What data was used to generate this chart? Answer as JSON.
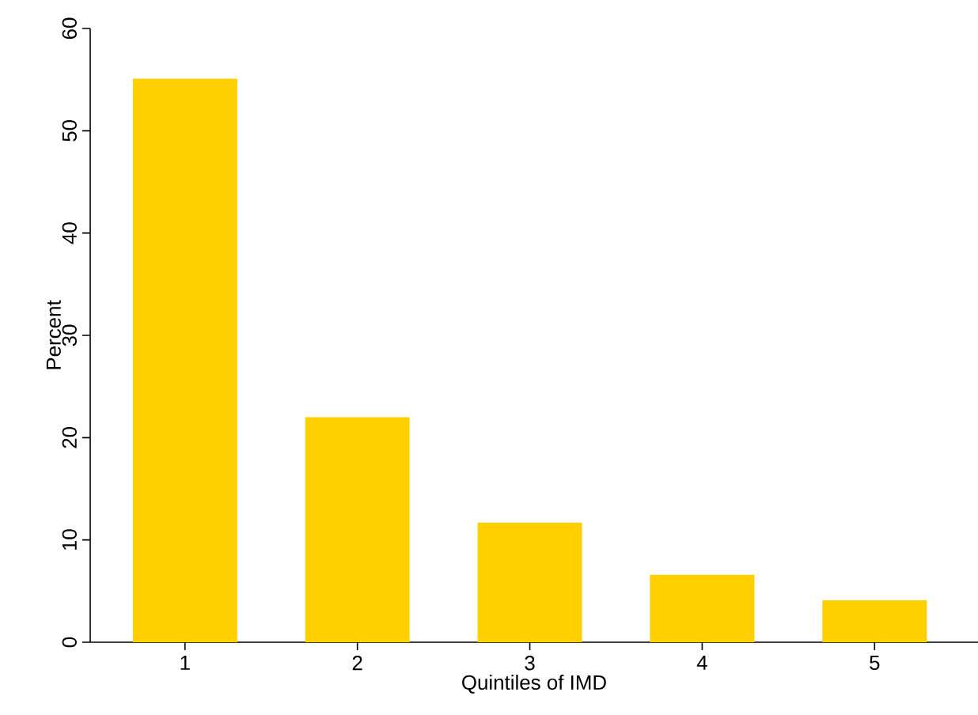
{
  "chart_data": {
    "type": "bar",
    "xlabel": "Quintiles of IMD",
    "ylabel": "Percent",
    "categories": [
      "1",
      "2",
      "3",
      "4",
      "5"
    ],
    "values": [
      55.1,
      22.0,
      11.7,
      6.6,
      4.1
    ],
    "color": "#ffcf00",
    "ylim": [
      0,
      60
    ],
    "yticks": [
      0,
      10,
      20,
      30,
      40,
      50,
      60
    ],
    "grid": false
  }
}
